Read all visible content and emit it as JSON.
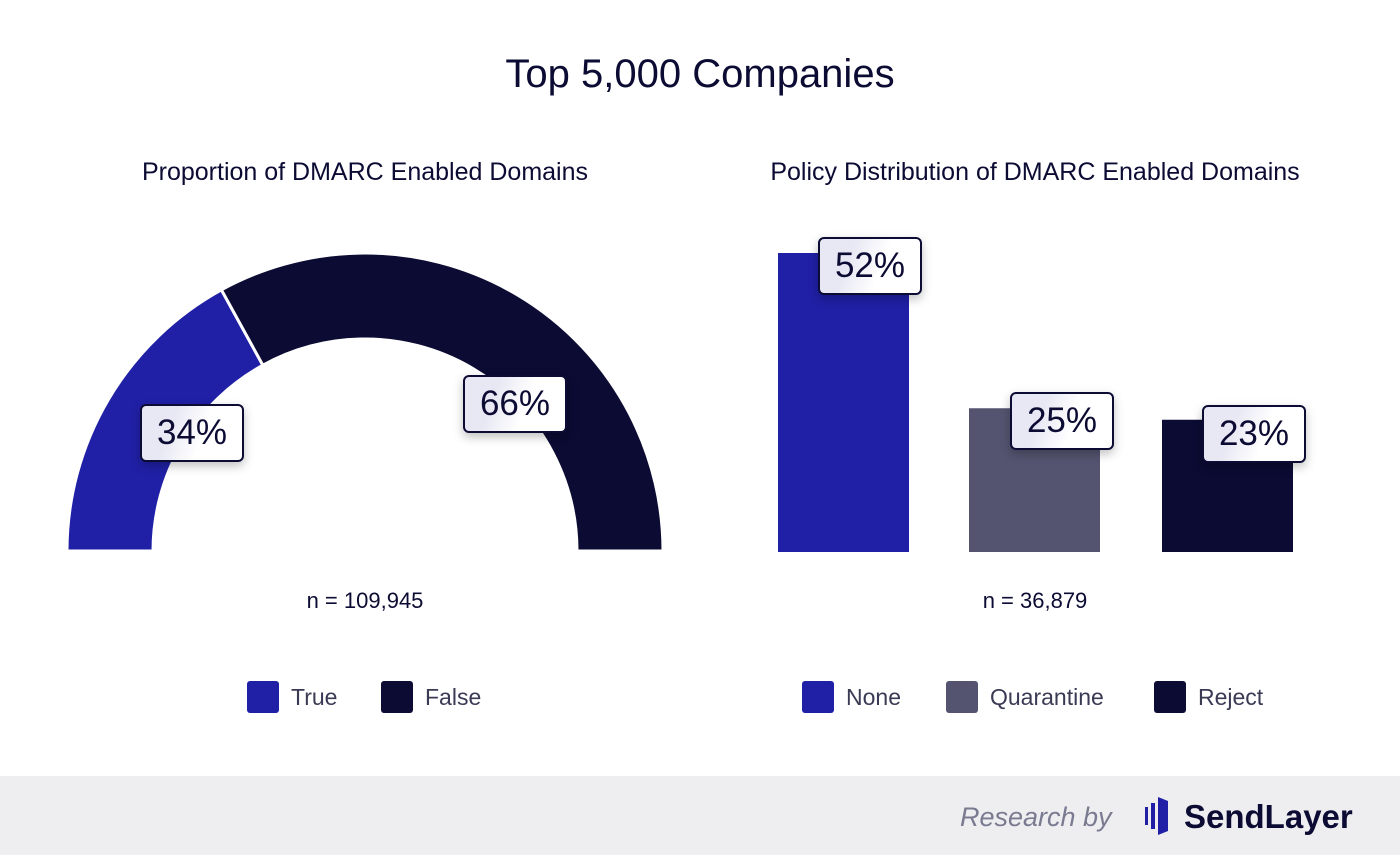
{
  "title": "Top 5,000 Companies",
  "colors": {
    "true": "#2020a6",
    "false": "#0b0b33",
    "none": "#2020a6",
    "quarantine": "#545470",
    "reject": "#0b0b33"
  },
  "chart_data": [
    {
      "type": "pie",
      "subtype": "half-donut",
      "title": "Proportion of DMARC Enabled Domains",
      "categories": [
        "True",
        "False"
      ],
      "values": [
        34,
        66
      ],
      "labels": [
        "34%",
        "66%"
      ],
      "note": "n = 109,945",
      "legend": "bottom"
    },
    {
      "type": "bar",
      "title": "Policy Distribution of DMARC Enabled Domains",
      "categories": [
        "None",
        "Quarantine",
        "Reject"
      ],
      "values": [
        52,
        25,
        23
      ],
      "labels": [
        "52%",
        "25%",
        "23%"
      ],
      "note": "n = 36,879",
      "legend": "bottom"
    }
  ],
  "footer": {
    "prefix": "Research by",
    "brand": "SendLayer"
  }
}
